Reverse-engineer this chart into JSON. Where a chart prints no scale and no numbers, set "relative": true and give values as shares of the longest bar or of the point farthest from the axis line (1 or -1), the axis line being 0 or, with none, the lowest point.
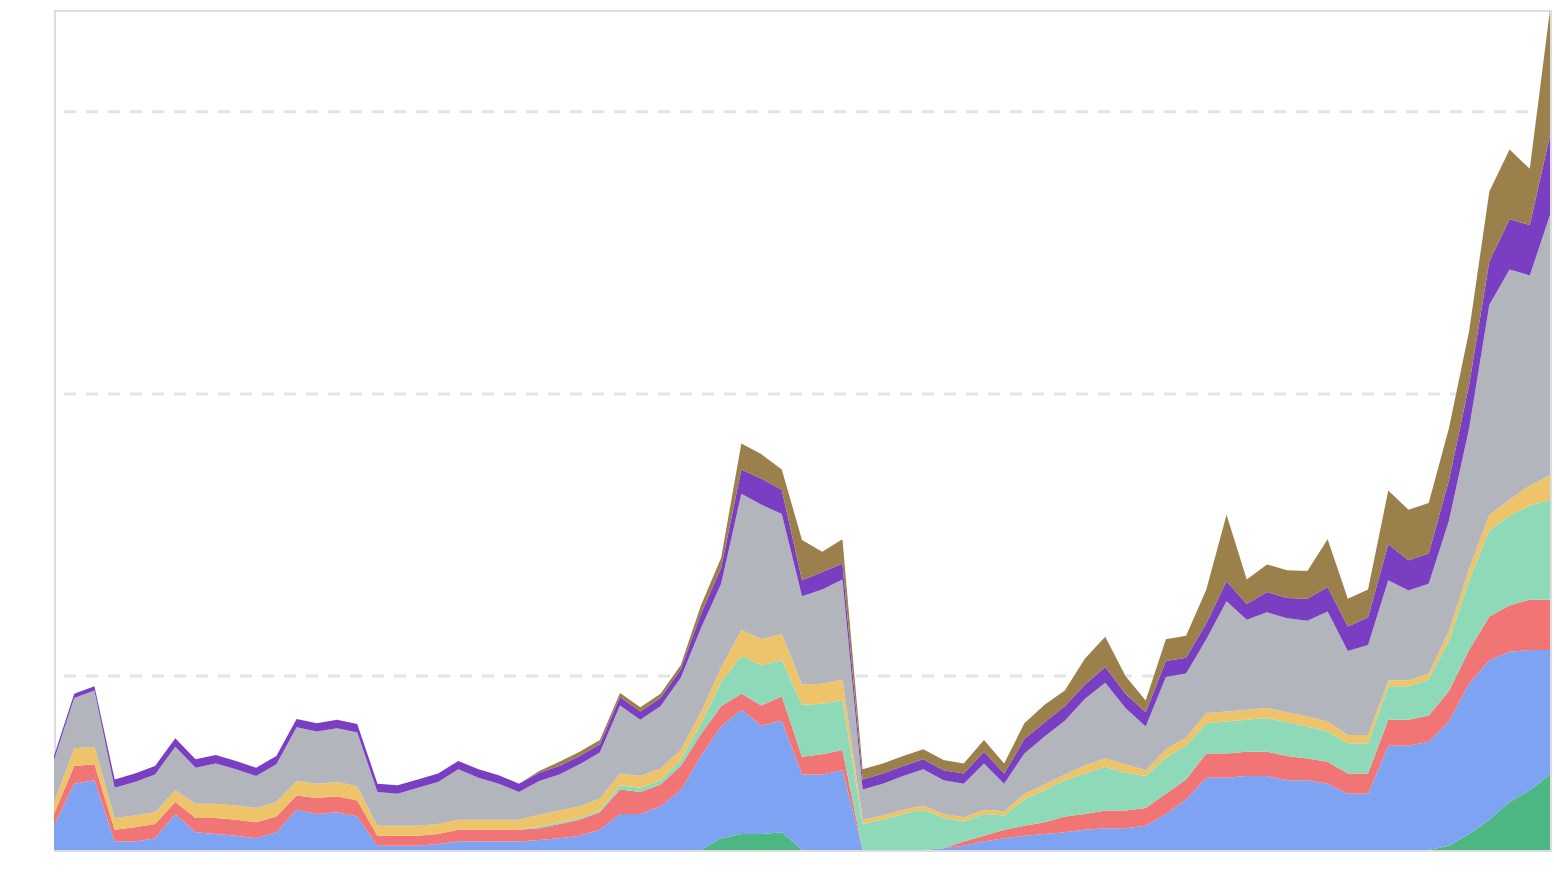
{
  "chart_data": {
    "type": "area",
    "stacked": true,
    "relative": true,
    "ref_lines": [
      {
        "axis": "y",
        "value": 0.879,
        "color": "#e4e4e4",
        "line_style": "dashed"
      },
      {
        "axis": "y",
        "value": 0.543,
        "color": "#e4e4e4",
        "line_style": "dashed"
      },
      {
        "axis": "y",
        "value": 0.207,
        "color": "#e4e4e4",
        "line_style": "dashed"
      }
    ],
    "categories": [
      null,
      null,
      null,
      null,
      null,
      null,
      null,
      null,
      null,
      null,
      null,
      null,
      null,
      null,
      null,
      null,
      null,
      null,
      null,
      null,
      null,
      null,
      null,
      null,
      null,
      null,
      null,
      null,
      null,
      null,
      null,
      null,
      null,
      null,
      null,
      null,
      null,
      null,
      null,
      null,
      null,
      null,
      null,
      null,
      null,
      null,
      null,
      null,
      null,
      null,
      null,
      null,
      null,
      null,
      null,
      null,
      null,
      null,
      null,
      null,
      null,
      null,
      null,
      null,
      null,
      null,
      null,
      null,
      null,
      null,
      null,
      null,
      null,
      null,
      null
    ],
    "series": [
      {
        "color": "#4cb782",
        "values": [
          0,
          0,
          0,
          0,
          0,
          0,
          0,
          0,
          0,
          0,
          0,
          0,
          0,
          0,
          0,
          0,
          0,
          0,
          0,
          0,
          0,
          0,
          0,
          0,
          0,
          0,
          0,
          0,
          0,
          0,
          0,
          0,
          0,
          0.014,
          0.019,
          0.019,
          0.021,
          0,
          0,
          0,
          0,
          0,
          0,
          0,
          0,
          0,
          0,
          0,
          0,
          0,
          0,
          0,
          0,
          0,
          0,
          0,
          0,
          0,
          0,
          0,
          0,
          0,
          0,
          0,
          0,
          0,
          0,
          0,
          0,
          0.005,
          0.019,
          0.036,
          0.057,
          0.071,
          0.09
        ]
      },
      {
        "color": "#7fa3f3",
        "values": [
          0.029,
          0.079,
          0.083,
          0.01,
          0.01,
          0.014,
          0.043,
          0.021,
          0.019,
          0.017,
          0.014,
          0.021,
          0.048,
          0.043,
          0.045,
          0.04,
          0.005,
          0.005,
          0.005,
          0.007,
          0.01,
          0.01,
          0.01,
          0.01,
          0.012,
          0.014,
          0.017,
          0.024,
          0.043,
          0.043,
          0.052,
          0.071,
          0.112,
          0.133,
          0.148,
          0.129,
          0.133,
          0.09,
          0.09,
          0.095,
          0,
          0,
          0,
          0,
          0.002,
          0.005,
          0.01,
          0.014,
          0.017,
          0.019,
          0.021,
          0.024,
          0.026,
          0.026,
          0.029,
          0.043,
          0.06,
          0.086,
          0.086,
          0.088,
          0.088,
          0.083,
          0.083,
          0.079,
          0.067,
          0.067,
          0.124,
          0.124,
          0.129,
          0.148,
          0.179,
          0.19,
          0.179,
          0.167,
          0.148
        ]
      },
      {
        "color": "#f27575",
        "values": [
          0.014,
          0.021,
          0.019,
          0.014,
          0.017,
          0.017,
          0.014,
          0.017,
          0.019,
          0.019,
          0.019,
          0.019,
          0.017,
          0.019,
          0.019,
          0.019,
          0.012,
          0.012,
          0.012,
          0.012,
          0.014,
          0.014,
          0.014,
          0.014,
          0.014,
          0.017,
          0.019,
          0.021,
          0.029,
          0.026,
          0.026,
          0.029,
          0.026,
          0.024,
          0.019,
          0.024,
          0.029,
          0.021,
          0.024,
          0.024,
          0,
          0,
          0,
          0,
          0,
          0.005,
          0.007,
          0.01,
          0.012,
          0.014,
          0.019,
          0.019,
          0.021,
          0.021,
          0.021,
          0.024,
          0.024,
          0.029,
          0.029,
          0.029,
          0.029,
          0.029,
          0.026,
          0.026,
          0.024,
          0.024,
          0.031,
          0.031,
          0.031,
          0.036,
          0.04,
          0.052,
          0.055,
          0.06,
          0.06
        ]
      },
      {
        "color": "#8edab8",
        "values": [
          0,
          0,
          0,
          0,
          0,
          0,
          0,
          0,
          0,
          0,
          0,
          0,
          0,
          0,
          0,
          0,
          0,
          0,
          0,
          0,
          0,
          0,
          0,
          0,
          0.002,
          0.002,
          0.002,
          0.002,
          0.005,
          0.005,
          0.005,
          0.007,
          0.012,
          0.029,
          0.045,
          0.048,
          0.043,
          0.062,
          0.06,
          0.06,
          0.031,
          0.036,
          0.043,
          0.048,
          0.036,
          0.024,
          0.026,
          0.017,
          0.031,
          0.038,
          0.043,
          0.048,
          0.052,
          0.045,
          0.038,
          0.043,
          0.04,
          0.036,
          0.038,
          0.038,
          0.04,
          0.04,
          0.038,
          0.036,
          0.036,
          0.036,
          0.04,
          0.04,
          0.043,
          0.06,
          0.083,
          0.102,
          0.107,
          0.112,
          0.119
        ]
      },
      {
        "color": "#eec46a",
        "values": [
          0.014,
          0.021,
          0.021,
          0.014,
          0.014,
          0.014,
          0.014,
          0.017,
          0.017,
          0.017,
          0.017,
          0.017,
          0.017,
          0.017,
          0.017,
          0.017,
          0.012,
          0.012,
          0.012,
          0.012,
          0.012,
          0.012,
          0.012,
          0.012,
          0.014,
          0.014,
          0.014,
          0.014,
          0.014,
          0.014,
          0.014,
          0.012,
          0.014,
          0.017,
          0.031,
          0.031,
          0.031,
          0.024,
          0.024,
          0.024,
          0.005,
          0.005,
          0.005,
          0.005,
          0.005,
          0.005,
          0.005,
          0.005,
          0.007,
          0.007,
          0.007,
          0.01,
          0.01,
          0.01,
          0.007,
          0.01,
          0.01,
          0.012,
          0.012,
          0.012,
          0.012,
          0.012,
          0.012,
          0.012,
          0.01,
          0.01,
          0.007,
          0.007,
          0.007,
          0.012,
          0.014,
          0.019,
          0.019,
          0.024,
          0.029
        ]
      },
      {
        "color": "#b2b5bc",
        "values": [
          0.05,
          0.06,
          0.067,
          0.036,
          0.04,
          0.045,
          0.052,
          0.043,
          0.048,
          0.043,
          0.038,
          0.045,
          0.064,
          0.062,
          0.064,
          0.064,
          0.04,
          0.038,
          0.045,
          0.05,
          0.06,
          0.05,
          0.043,
          0.033,
          0.04,
          0.043,
          0.05,
          0.055,
          0.081,
          0.067,
          0.074,
          0.086,
          0.1,
          0.1,
          0.162,
          0.16,
          0.143,
          0.105,
          0.112,
          0.119,
          0.036,
          0.038,
          0.04,
          0.043,
          0.04,
          0.04,
          0.055,
          0.033,
          0.048,
          0.057,
          0.064,
          0.079,
          0.09,
          0.067,
          0.052,
          0.086,
          0.076,
          0.088,
          0.131,
          0.107,
          0.114,
          0.112,
          0.114,
          0.131,
          0.1,
          0.107,
          0.119,
          0.107,
          0.107,
          0.131,
          0.167,
          0.25,
          0.274,
          0.25,
          0.31
        ]
      },
      {
        "color": "#7a3ec2",
        "values": [
          0.005,
          0.005,
          0.005,
          0.01,
          0.01,
          0.01,
          0.01,
          0.01,
          0.01,
          0.01,
          0.01,
          0.01,
          0.01,
          0.01,
          0.01,
          0.01,
          0.01,
          0.01,
          0.01,
          0.01,
          0.01,
          0.01,
          0.01,
          0.01,
          0.01,
          0.01,
          0.01,
          0.01,
          0.01,
          0.01,
          0.01,
          0.01,
          0.017,
          0.019,
          0.029,
          0.031,
          0.029,
          0.019,
          0.021,
          0.019,
          0.012,
          0.012,
          0.012,
          0.012,
          0.012,
          0.012,
          0.014,
          0.012,
          0.017,
          0.017,
          0.017,
          0.017,
          0.019,
          0.017,
          0.017,
          0.019,
          0.019,
          0.019,
          0.024,
          0.019,
          0.024,
          0.024,
          0.026,
          0.029,
          0.029,
          0.033,
          0.043,
          0.036,
          0.036,
          0.048,
          0.052,
          0.052,
          0.06,
          0.06,
          0.095
        ]
      },
      {
        "color": "#9b804c",
        "values": [
          0,
          0,
          0,
          0,
          0,
          0,
          0,
          0,
          0,
          0,
          0,
          0,
          0,
          0,
          0,
          0,
          0,
          0,
          0,
          0,
          0,
          0,
          0,
          0,
          0.002,
          0.005,
          0.005,
          0.005,
          0.005,
          0.005,
          0.005,
          0.005,
          0.01,
          0.012,
          0.031,
          0.029,
          0.024,
          0.048,
          0.024,
          0.029,
          0.012,
          0.012,
          0.012,
          0.012,
          0.012,
          0.012,
          0.014,
          0.012,
          0.019,
          0.021,
          0.019,
          0.031,
          0.036,
          0.021,
          0.014,
          0.026,
          0.026,
          0.04,
          0.079,
          0.029,
          0.033,
          0.033,
          0.033,
          0.057,
          0.033,
          0.033,
          0.064,
          0.06,
          0.06,
          0.062,
          0.064,
          0.083,
          0.083,
          0.067,
          0.149
        ]
      }
    ]
  }
}
